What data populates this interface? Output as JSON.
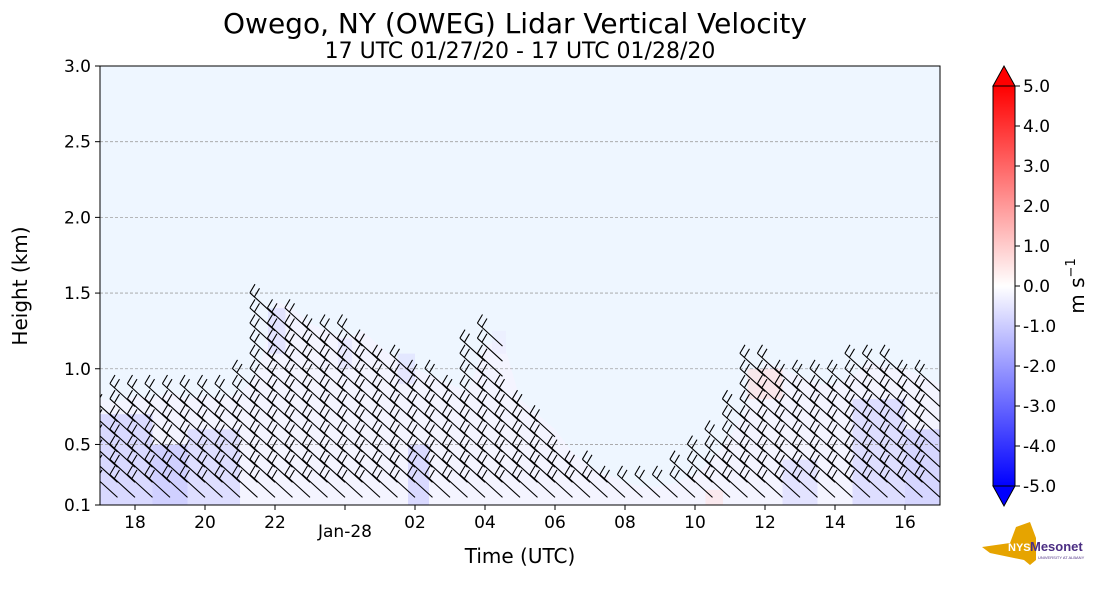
{
  "chart_data": {
    "type": "heatmap",
    "title": "Owego, NY (OWEG) Lidar Vertical Velocity",
    "subtitle": "17 UTC 01/27/20 - 17 UTC 01/28/20",
    "xlabel": "Time (UTC)",
    "ylabel": "Height (km)",
    "x_range_hours": [
      17,
      41
    ],
    "ylim": [
      0.1,
      3.0
    ],
    "x_ticks": [
      {
        "hour": 18,
        "label": "18"
      },
      {
        "hour": 20,
        "label": "20"
      },
      {
        "hour": 22,
        "label": "22"
      },
      {
        "hour": 24,
        "label": "Jan-28"
      },
      {
        "hour": 26,
        "label": "02"
      },
      {
        "hour": 28,
        "label": "04"
      },
      {
        "hour": 30,
        "label": "06"
      },
      {
        "hour": 32,
        "label": "08"
      },
      {
        "hour": 34,
        "label": "10"
      },
      {
        "hour": 36,
        "label": "12"
      },
      {
        "hour": 38,
        "label": "14"
      },
      {
        "hour": 40,
        "label": "16"
      }
    ],
    "y_ticks": [
      {
        "value": 0.1,
        "label": "0.1"
      },
      {
        "value": 0.5,
        "label": "0.5"
      },
      {
        "value": 1.0,
        "label": "1.0"
      },
      {
        "value": 1.5,
        "label": "1.5"
      },
      {
        "value": 2.0,
        "label": "2.0"
      },
      {
        "value": 2.5,
        "label": "2.5"
      },
      {
        "value": 3.0,
        "label": "3.0"
      }
    ],
    "grid": "horizontal dashed",
    "colorbar": {
      "label": "m s",
      "label_exponent": "−1",
      "range": [
        -5.0,
        5.0
      ],
      "colormap": "bwr",
      "extend": "both",
      "ticks": [
        {
          "value": 5.0,
          "label": "5.0"
        },
        {
          "value": 4.0,
          "label": "4.0"
        },
        {
          "value": 3.0,
          "label": "3.0"
        },
        {
          "value": 2.0,
          "label": "2.0"
        },
        {
          "value": 1.0,
          "label": "1.0"
        },
        {
          "value": 0.0,
          "label": "0.0"
        },
        {
          "value": -1.0,
          "label": "-1.0"
        },
        {
          "value": -2.0,
          "label": "-2.0"
        },
        {
          "value": -3.0,
          "label": "-3.0"
        },
        {
          "value": -4.0,
          "label": "-4.0"
        },
        {
          "value": -5.0,
          "label": "-5.0"
        }
      ]
    },
    "colors": {
      "background_field": "#eef6ff",
      "grid": "#a0a0a0",
      "barb": "#000000",
      "negative": "#0000ff",
      "positive": "#ff0000"
    },
    "data_top_km": [
      [
        17.0,
        0.8
      ],
      [
        17.5,
        0.78
      ],
      [
        18.0,
        0.82
      ],
      [
        18.5,
        0.8
      ],
      [
        19.0,
        0.85
      ],
      [
        19.5,
        0.8
      ],
      [
        20.0,
        0.82
      ],
      [
        20.5,
        0.8
      ],
      [
        21.0,
        0.84
      ],
      [
        21.5,
        0.95
      ],
      [
        22.0,
        1.45
      ],
      [
        22.5,
        1.4
      ],
      [
        23.0,
        1.3
      ],
      [
        23.5,
        1.25
      ],
      [
        24.0,
        1.2
      ],
      [
        24.5,
        1.25
      ],
      [
        25.0,
        1.15
      ],
      [
        25.5,
        1.05
      ],
      [
        26.0,
        1.0
      ],
      [
        26.5,
        0.95
      ],
      [
        27.0,
        0.9
      ],
      [
        27.5,
        0.85
      ],
      [
        28.0,
        1.15
      ],
      [
        28.5,
        1.2
      ],
      [
        29.0,
        0.8
      ],
      [
        29.5,
        0.7
      ],
      [
        30.0,
        0.6
      ],
      [
        30.5,
        0.45
      ],
      [
        31.0,
        0.35
      ],
      [
        31.5,
        0.3
      ],
      [
        32.0,
        0.25
      ],
      [
        32.5,
        0.22
      ],
      [
        33.0,
        0.22
      ],
      [
        33.5,
        0.25
      ],
      [
        34.0,
        0.3
      ],
      [
        34.5,
        0.4
      ],
      [
        35.0,
        0.55
      ],
      [
        35.5,
        0.75
      ],
      [
        36.0,
        1.05
      ],
      [
        36.5,
        1.0
      ],
      [
        37.0,
        0.95
      ],
      [
        37.5,
        0.9
      ],
      [
        38.0,
        0.9
      ],
      [
        38.5,
        0.95
      ],
      [
        39.0,
        1.05
      ],
      [
        39.5,
        1.0
      ],
      [
        40.0,
        1.0
      ],
      [
        40.5,
        0.95
      ],
      [
        41.0,
        0.9
      ]
    ],
    "velocity_patches": [
      {
        "t0": 17.0,
        "t1": 18.5,
        "z0": 0.1,
        "z1": 0.7,
        "w": -1.2
      },
      {
        "t0": 18.5,
        "t1": 19.5,
        "z0": 0.1,
        "z1": 0.5,
        "w": -1.5
      },
      {
        "t0": 19.5,
        "t1": 21.0,
        "z0": 0.1,
        "z1": 0.6,
        "w": -1.0
      },
      {
        "t0": 21.8,
        "t1": 22.3,
        "z0": 1.1,
        "z1": 1.4,
        "w": -0.8
      },
      {
        "t0": 23.8,
        "t1": 24.2,
        "z0": 1.0,
        "z1": 1.2,
        "w": -0.6
      },
      {
        "t0": 25.5,
        "t1": 26.0,
        "z0": 0.9,
        "z1": 1.1,
        "w": -0.7
      },
      {
        "t0": 25.8,
        "t1": 26.4,
        "z0": 0.1,
        "z1": 0.5,
        "w": -1.2
      },
      {
        "t0": 28.2,
        "t1": 28.6,
        "z0": 1.1,
        "z1": 1.25,
        "w": -0.4
      },
      {
        "t0": 35.5,
        "t1": 36.5,
        "z0": 0.8,
        "z1": 1.0,
        "w": 0.7
      },
      {
        "t0": 34.3,
        "t1": 34.8,
        "z0": 0.1,
        "z1": 0.2,
        "w": 0.6
      },
      {
        "t0": 36.5,
        "t1": 37.5,
        "z0": 0.1,
        "z1": 0.4,
        "w": -0.8
      },
      {
        "t0": 38.5,
        "t1": 40.0,
        "z0": 0.1,
        "z1": 0.8,
        "w": -1.0
      },
      {
        "t0": 40.0,
        "t1": 41.0,
        "z0": 0.1,
        "z1": 0.6,
        "w": -1.3
      }
    ]
  },
  "logo": {
    "text_primary": "NYS",
    "text_secondary": "Mesonet",
    "text_tertiary": "UNIVERSITY AT ALBANY"
  }
}
